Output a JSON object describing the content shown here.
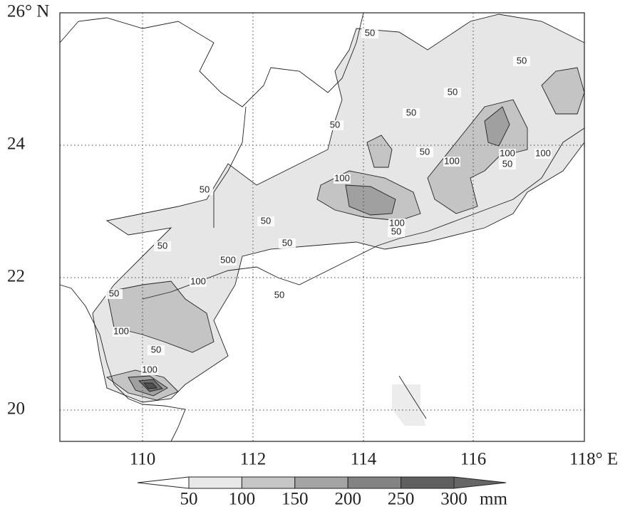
{
  "map": {
    "lat_labels": [
      "26° N",
      "24",
      "22",
      "20"
    ],
    "lon_labels": [
      "110",
      "112",
      "114",
      "116",
      "118° E"
    ],
    "contour_labels": [
      50,
      50,
      50,
      50,
      50,
      50,
      100,
      100,
      100,
      50,
      100,
      50,
      50,
      100,
      50,
      50,
      50,
      500,
      100,
      50,
      50,
      100,
      50,
      100
    ],
    "colorbar": {
      "labels": [
        50,
        100,
        150,
        200,
        250,
        300
      ],
      "unit": "mm"
    }
  }
}
